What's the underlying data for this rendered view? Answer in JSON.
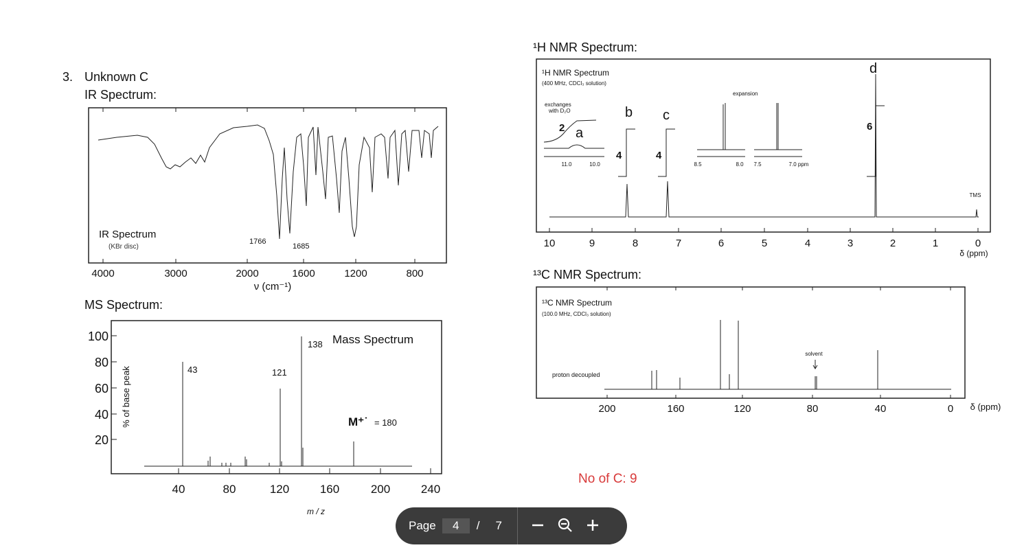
{
  "problem": {
    "number": "3.",
    "title": "Unknown C",
    "ir_heading": "IR Spectrum:",
    "ms_heading": "MS Spectrum:",
    "h_nmr_heading": "¹H NMR Spectrum:",
    "c_nmr_heading": "¹³C NMR Spectrum:",
    "carbon_note": "No of C: 9"
  },
  "ir": {
    "title": "IR Spectrum",
    "subtitle": "(KBr disc)",
    "peak_labels": [
      "1766",
      "1685"
    ],
    "x_ticks": [
      "4000",
      "3000",
      "2000",
      "1600",
      "1200",
      "800"
    ],
    "x_label": "ν (cm⁻¹)"
  },
  "ms": {
    "title": "Mass Spectrum",
    "y_label": "% of base peak",
    "x_label": "m / z",
    "y_ticks": [
      "100",
      "80",
      "60",
      "40",
      "20"
    ],
    "x_ticks": [
      "40",
      "80",
      "120",
      "160",
      "200",
      "240"
    ],
    "peak_labels": [
      "43",
      "121",
      "138"
    ],
    "ion_label": "M⁺˙",
    "ion_value": "= 180"
  },
  "h_nmr": {
    "title": "¹H NMR Spectrum",
    "subtitle": "(400 MHz, CDCl₃ solution)",
    "exchange_note": [
      "exchanges",
      "with D₂O"
    ],
    "expansion": "expansion",
    "inset_ticks": [
      "11.0",
      "10.0",
      "8.5",
      "8.0",
      "7.5",
      "7.0 ppm"
    ],
    "tms": "TMS",
    "signals": [
      "a",
      "b",
      "c",
      "d"
    ],
    "integrations": [
      "2",
      "4",
      "4",
      "6"
    ],
    "x_ticks": [
      "10",
      "9",
      "8",
      "7",
      "6",
      "5",
      "4",
      "3",
      "2",
      "1",
      "0"
    ],
    "x_label": "δ (ppm)"
  },
  "c_nmr": {
    "title": "¹³C NMR Spectrum",
    "subtitle": "(100.0 MHz, CDCl₃ solution)",
    "decoupled": "proton decoupled",
    "solvent": "solvent",
    "x_ticks": [
      "200",
      "160",
      "120",
      "80",
      "40",
      "0"
    ],
    "x_label": "δ (ppm)"
  },
  "toolbar": {
    "page_label": "Page",
    "current_page": "4",
    "separator": "/",
    "total_pages": "7"
  }
}
